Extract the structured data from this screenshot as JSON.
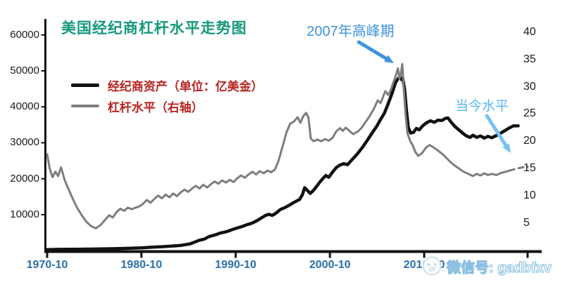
{
  "page": {
    "background": "#ffffff"
  },
  "title": {
    "text": "美国经纪商杠杆水平走势图",
    "color": "#16997b"
  },
  "legend": {
    "label_color": "#b8241f",
    "items": [
      {
        "id": "broker-assets",
        "label": "经纪商资产（单位：亿美金）",
        "line_color": "#111111",
        "line_thickness": 5
      },
      {
        "id": "leverage-level",
        "label": "杠杆水平（右轴）",
        "line_color": "#7d7d7d",
        "line_thickness": 4
      }
    ]
  },
  "annotations": [
    {
      "id": "peak-2007",
      "text": "2007年高峰期",
      "color": "#3e93dd",
      "arrow_color": "#3e93dd",
      "arrow_from": [
        510,
        60
      ],
      "arrow_to": [
        560,
        90
      ]
    },
    {
      "id": "current-level",
      "text": "当今水平",
      "color": "#58b5f3",
      "arrow_color": "#74c3f5",
      "arrow_from": [
        692,
        165
      ],
      "arrow_to": [
        726,
        218
      ]
    }
  ],
  "watermark": {
    "icon": "wechat-face-icon",
    "text": "微信号: gadbfxv"
  },
  "chart_data": {
    "type": "line",
    "title": "美国经纪商杠杆水平走势图",
    "grid": false,
    "legend_position": "top-left",
    "x_axis": {
      "tick_labels": [
        "1970-10",
        "1980-10",
        "1990-10",
        "2000-10",
        "2010-10"
      ],
      "tick_years": [
        1970.83,
        1980.83,
        1990.83,
        2000.83,
        2010.83
      ],
      "extra_tick_year": 2021.8,
      "label_color": "#2a6fa8"
    },
    "left_axis": {
      "ticks": [
        10000,
        20000,
        30000,
        40000,
        50000,
        60000
      ],
      "range": [
        0,
        61000
      ]
    },
    "right_axis": {
      "ticks": [
        5,
        10,
        15,
        20,
        25,
        30,
        35,
        40
      ],
      "range": [
        0,
        41.5
      ]
    },
    "series": [
      {
        "name": "经纪商资产（单位：亿美金）",
        "axis": "left",
        "color": "#111111",
        "width": 4.5,
        "points": [
          [
            1970.83,
            300
          ],
          [
            1972,
            350
          ],
          [
            1973,
            380
          ],
          [
            1974,
            400
          ],
          [
            1975,
            420
          ],
          [
            1976,
            450
          ],
          [
            1977,
            500
          ],
          [
            1978,
            550
          ],
          [
            1979,
            620
          ],
          [
            1980,
            700
          ],
          [
            1981,
            800
          ],
          [
            1982,
            950
          ],
          [
            1983,
            1100
          ],
          [
            1984,
            1250
          ],
          [
            1985,
            1450
          ],
          [
            1986,
            1900
          ],
          [
            1987,
            2900
          ],
          [
            1987.5,
            3200
          ],
          [
            1988,
            3900
          ],
          [
            1988.4,
            4200
          ],
          [
            1988.8,
            4500
          ],
          [
            1989.2,
            4900
          ],
          [
            1989.6,
            5100
          ],
          [
            1990,
            5400
          ],
          [
            1990.5,
            5900
          ],
          [
            1991,
            6300
          ],
          [
            1991.5,
            6700
          ],
          [
            1992,
            7200
          ],
          [
            1992.5,
            7600
          ],
          [
            1993,
            8200
          ],
          [
            1993.5,
            9000
          ],
          [
            1994,
            9800
          ],
          [
            1994.35,
            10100
          ],
          [
            1994.7,
            9800
          ],
          [
            1995.1,
            10400
          ],
          [
            1995.6,
            11500
          ],
          [
            1996,
            11900
          ],
          [
            1996.5,
            12600
          ],
          [
            1997,
            13400
          ],
          [
            1997.6,
            14200
          ],
          [
            1997.9,
            15500
          ],
          [
            1998.15,
            17500
          ],
          [
            1998.45,
            16700
          ],
          [
            1998.75,
            15900
          ],
          [
            1999.1,
            16800
          ],
          [
            1999.45,
            18000
          ],
          [
            1999.8,
            19200
          ],
          [
            2000.1,
            20100
          ],
          [
            2000.4,
            20900
          ],
          [
            2000.7,
            20400
          ],
          [
            2001.1,
            21800
          ],
          [
            2001.5,
            23100
          ],
          [
            2001.9,
            23800
          ],
          [
            2002.3,
            24200
          ],
          [
            2002.7,
            23900
          ],
          [
            2003.1,
            25100
          ],
          [
            2003.7,
            26800
          ],
          [
            2004.3,
            28800
          ],
          [
            2004.8,
            30700
          ],
          [
            2005.3,
            32700
          ],
          [
            2005.8,
            34600
          ],
          [
            2006.2,
            36500
          ],
          [
            2006.6,
            38200
          ],
          [
            2007,
            40800
          ],
          [
            2007.4,
            43600
          ],
          [
            2007.8,
            46800
          ],
          [
            2008.05,
            47800
          ],
          [
            2008.25,
            48300
          ],
          [
            2008.4,
            47600
          ],
          [
            2008.55,
            48100
          ],
          [
            2008.75,
            45000
          ],
          [
            2008.95,
            39000
          ],
          [
            2009.15,
            34200
          ],
          [
            2009.4,
            32700
          ],
          [
            2009.7,
            32900
          ],
          [
            2010,
            34000
          ],
          [
            2010.3,
            33600
          ],
          [
            2010.7,
            34800
          ],
          [
            2011.1,
            35600
          ],
          [
            2011.5,
            36100
          ],
          [
            2011.9,
            35700
          ],
          [
            2012.3,
            36300
          ],
          [
            2012.7,
            36200
          ],
          [
            2013.1,
            36800
          ],
          [
            2013.35,
            36900
          ],
          [
            2013.7,
            35700
          ],
          [
            2014.1,
            34500
          ],
          [
            2014.5,
            33600
          ],
          [
            2014.9,
            32700
          ],
          [
            2015.3,
            31900
          ],
          [
            2015.7,
            31500
          ],
          [
            2016,
            32100
          ],
          [
            2016.4,
            31500
          ],
          [
            2016.8,
            31900
          ],
          [
            2017.2,
            31300
          ],
          [
            2017.6,
            31800
          ],
          [
            2018,
            31400
          ],
          [
            2018.4,
            31900
          ],
          [
            2018.9,
            32600
          ],
          [
            2019.4,
            33400
          ],
          [
            2019.9,
            34200
          ],
          [
            2020.3,
            34700
          ],
          [
            2020.8,
            34700
          ]
        ]
      },
      {
        "name": "杠杆水平（右轴）",
        "axis": "right",
        "color": "#7d7d7d",
        "width": 3,
        "dash_from_year": 2019.9,
        "points": [
          [
            1970.83,
            17.6
          ],
          [
            1971.1,
            15.0
          ],
          [
            1971.4,
            13.4
          ],
          [
            1971.7,
            14.4
          ],
          [
            1972,
            13.6
          ],
          [
            1972.3,
            15.2
          ],
          [
            1972.7,
            12.8
          ],
          [
            1973.1,
            11.2
          ],
          [
            1973.5,
            9.6
          ],
          [
            1974,
            7.8
          ],
          [
            1974.5,
            6.4
          ],
          [
            1975,
            5.2
          ],
          [
            1975.5,
            4.4
          ],
          [
            1976,
            4.0
          ],
          [
            1976.5,
            4.6
          ],
          [
            1977,
            5.6
          ],
          [
            1977.4,
            6.4
          ],
          [
            1977.8,
            6.0
          ],
          [
            1978.2,
            7.0
          ],
          [
            1978.6,
            7.6
          ],
          [
            1979,
            7.2
          ],
          [
            1979.4,
            7.8
          ],
          [
            1979.8,
            7.5
          ],
          [
            1980.2,
            7.8
          ],
          [
            1980.6,
            8.0
          ],
          [
            1981,
            8.5
          ],
          [
            1981.4,
            9.2
          ],
          [
            1981.8,
            8.7
          ],
          [
            1982.2,
            9.4
          ],
          [
            1982.6,
            10.0
          ],
          [
            1983,
            9.5
          ],
          [
            1983.4,
            10.2
          ],
          [
            1983.8,
            9.7
          ],
          [
            1984.2,
            10.4
          ],
          [
            1984.6,
            9.9
          ],
          [
            1985,
            10.6
          ],
          [
            1985.4,
            11.1
          ],
          [
            1985.8,
            10.7
          ],
          [
            1986.2,
            11.3
          ],
          [
            1986.6,
            11.8
          ],
          [
            1987,
            11.3
          ],
          [
            1987.4,
            12.0
          ],
          [
            1987.8,
            11.5
          ],
          [
            1988.2,
            12.1
          ],
          [
            1988.6,
            12.6
          ],
          [
            1989,
            12.2
          ],
          [
            1989.4,
            12.8
          ],
          [
            1989.8,
            12.4
          ],
          [
            1990.2,
            12.9
          ],
          [
            1990.6,
            12.5
          ],
          [
            1991,
            13.2
          ],
          [
            1991.4,
            13.7
          ],
          [
            1991.8,
            13.3
          ],
          [
            1992.2,
            13.9
          ],
          [
            1992.6,
            14.4
          ],
          [
            1993,
            13.9
          ],
          [
            1993.4,
            14.5
          ],
          [
            1993.8,
            14.1
          ],
          [
            1994.2,
            14.6
          ],
          [
            1994.6,
            14.3
          ],
          [
            1995,
            14.8
          ],
          [
            1995.4,
            16.5
          ],
          [
            1995.8,
            19.0
          ],
          [
            1996.2,
            21.5
          ],
          [
            1996.6,
            23.2
          ],
          [
            1997,
            23.6
          ],
          [
            1997.4,
            24.4
          ],
          [
            1997.7,
            23.4
          ],
          [
            1998,
            24.6
          ],
          [
            1998.3,
            25.2
          ],
          [
            1998.55,
            24.4
          ],
          [
            1998.8,
            20.5
          ],
          [
            1999.1,
            20.0
          ],
          [
            1999.5,
            20.3
          ],
          [
            1999.9,
            20.0
          ],
          [
            2000.3,
            20.4
          ],
          [
            2000.7,
            20.1
          ],
          [
            2001.1,
            20.6
          ],
          [
            2001.5,
            21.8
          ],
          [
            2001.9,
            22.4
          ],
          [
            2002.2,
            21.9
          ],
          [
            2002.5,
            22.5
          ],
          [
            2002.9,
            21.9
          ],
          [
            2003.3,
            21.3
          ],
          [
            2003.8,
            21.8
          ],
          [
            2004.2,
            22.5
          ],
          [
            2004.6,
            23.5
          ],
          [
            2005,
            24.5
          ],
          [
            2005.5,
            26.0
          ],
          [
            2005.9,
            27.5
          ],
          [
            2006.2,
            27.0
          ],
          [
            2006.7,
            29.2
          ],
          [
            2007,
            28.5
          ],
          [
            2007.3,
            29.5
          ],
          [
            2007.6,
            31.0
          ],
          [
            2007.9,
            32.5
          ],
          [
            2008.05,
            33.4
          ],
          [
            2008.2,
            31.5
          ],
          [
            2008.35,
            32.3
          ],
          [
            2008.5,
            34.2
          ],
          [
            2008.65,
            30.0
          ],
          [
            2008.85,
            25.0
          ],
          [
            2009.05,
            21.5
          ],
          [
            2009.35,
            20.0
          ],
          [
            2009.6,
            19.3
          ],
          [
            2009.9,
            18.0
          ],
          [
            2010.2,
            17.3
          ],
          [
            2010.6,
            17.8
          ],
          [
            2011,
            18.8
          ],
          [
            2011.4,
            19.3
          ],
          [
            2011.8,
            18.9
          ],
          [
            2012.2,
            18.4
          ],
          [
            2012.8,
            17.6
          ],
          [
            2013.2,
            16.9
          ],
          [
            2013.6,
            16.2
          ],
          [
            2014,
            15.6
          ],
          [
            2014.5,
            15.0
          ],
          [
            2015,
            14.4
          ],
          [
            2015.5,
            14.0
          ],
          [
            2016,
            13.6
          ],
          [
            2016.4,
            14.0
          ],
          [
            2016.8,
            13.7
          ],
          [
            2017.2,
            14.1
          ],
          [
            2017.6,
            13.8
          ],
          [
            2018,
            14.0
          ],
          [
            2018.5,
            13.8
          ],
          [
            2019,
            14.2
          ],
          [
            2019.5,
            14.4
          ],
          [
            2019.9,
            14.6
          ],
          [
            2020.7,
            15.0
          ],
          [
            2021.3,
            15.2
          ],
          [
            2021.8,
            15.3
          ]
        ]
      }
    ]
  }
}
